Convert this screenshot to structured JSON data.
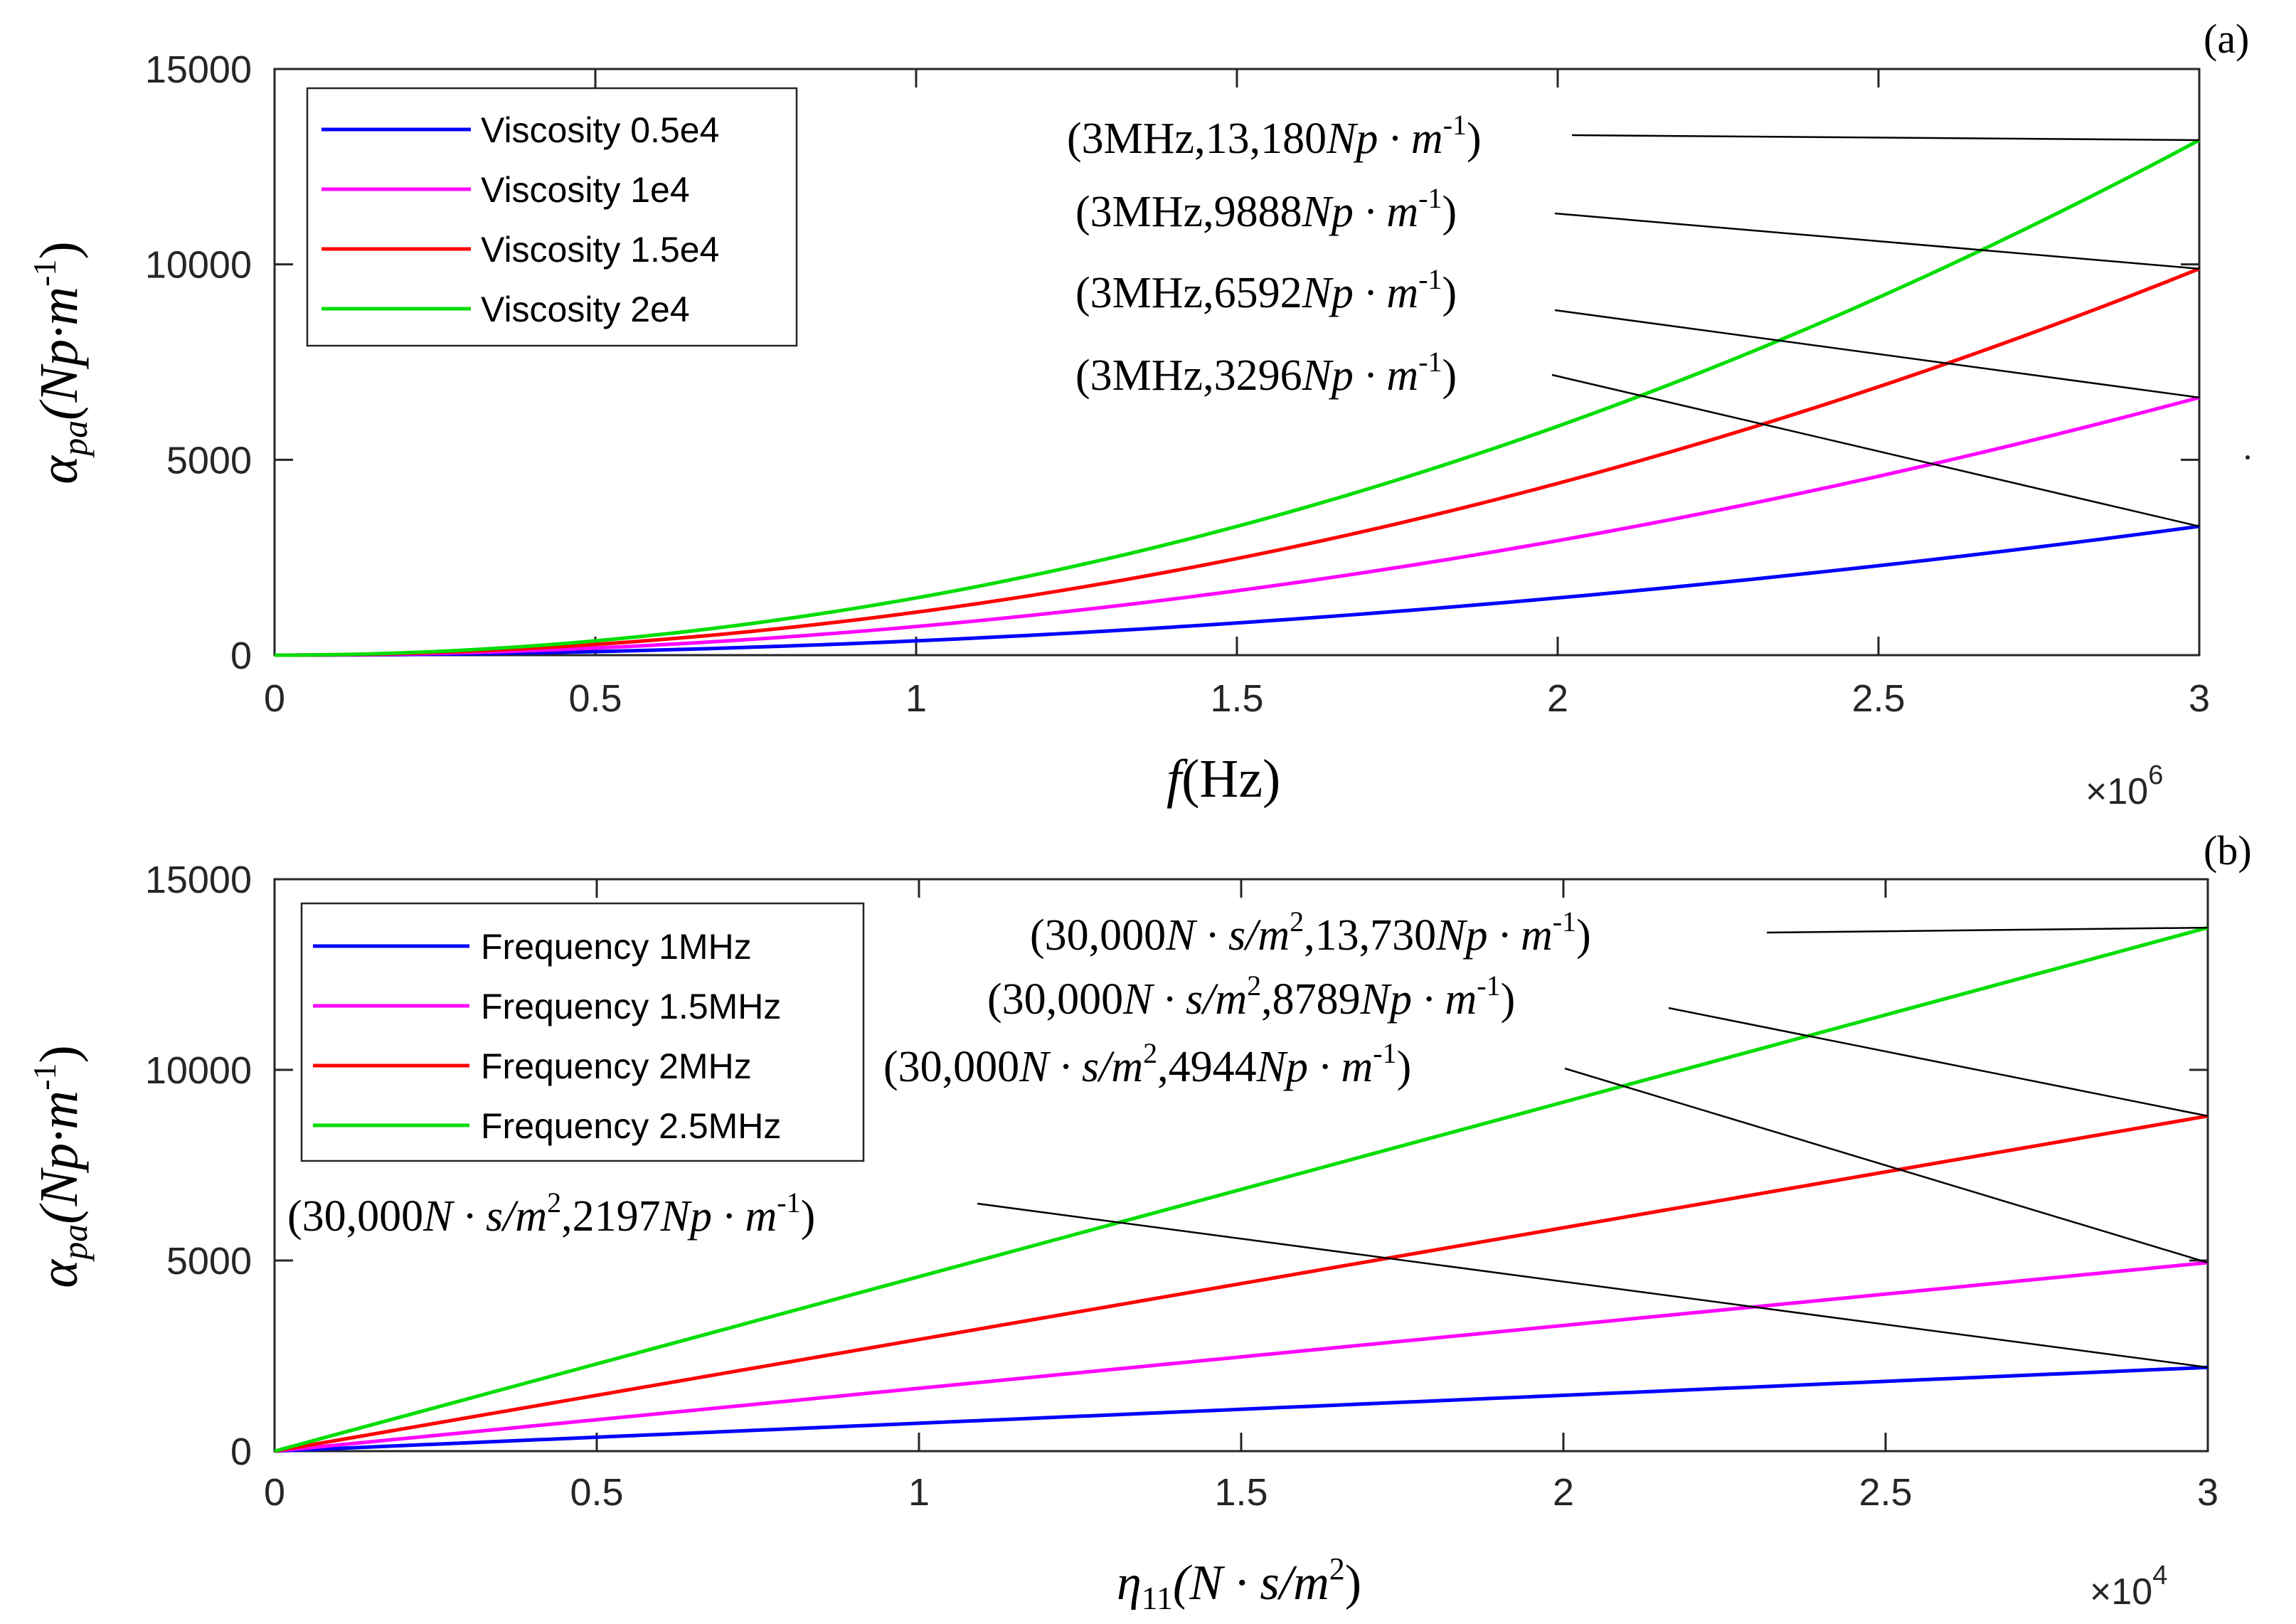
{
  "chart_data": [
    {
      "type": "line",
      "panel_label": "(a)",
      "xlabel": {
        "italic": "f",
        "rest": "(Hz)"
      },
      "ylabel": {
        "symbol": "α",
        "sub": "pa",
        "units": "(Np·m",
        "sup": "-1",
        "close": ")"
      },
      "xlim": [
        0,
        3000000
      ],
      "ylim": [
        0,
        15000
      ],
      "x_ticks": [
        0,
        500000,
        1000000,
        1500000,
        2000000,
        2500000,
        3000000
      ],
      "x_tick_labels": [
        "0",
        "0.5",
        "1",
        "1.5",
        "2",
        "2.5",
        "3"
      ],
      "y_ticks": [
        0,
        5000,
        10000,
        15000
      ],
      "y_tick_labels": [
        "0",
        "5000",
        "10000",
        "15000"
      ],
      "x_multiplier": {
        "base": "×10",
        "exp": "6"
      },
      "legend_position": "top-left",
      "curve": "quadratic",
      "series": [
        {
          "name": "Viscosity 0.5e4",
          "color": "#0000ff",
          "x": [
            0,
            3000000
          ],
          "end_value": 3296
        },
        {
          "name": "Viscosity 1e4",
          "color": "#ff00ff",
          "x": [
            0,
            3000000
          ],
          "end_value": 6592
        },
        {
          "name": "Viscosity 1.5e4",
          "color": "#ff0000",
          "x": [
            0,
            3000000
          ],
          "end_value": 9888
        },
        {
          "name": "Viscosity 2e4",
          "color": "#00dd00",
          "x": [
            0,
            3000000
          ],
          "end_value": 13180
        }
      ],
      "annotations": [
        {
          "text_main": "(3MHz,13,180",
          "text_unit": "Np · m",
          "text_sup": "-1",
          "text_close": ")",
          "x": 3000000,
          "y": 13180
        },
        {
          "text_main": "(3MHz,9888",
          "text_unit": "Np · m",
          "text_sup": "-1",
          "text_close": ")",
          "x": 3000000,
          "y": 9888
        },
        {
          "text_main": "(3MHz,6592",
          "text_unit": "Np · m",
          "text_sup": "-1",
          "text_close": ")",
          "x": 3000000,
          "y": 6592
        },
        {
          "text_main": "(3MHz,3296",
          "text_unit": "Np · m",
          "text_sup": "-1",
          "text_close": ")",
          "x": 3000000,
          "y": 3296
        }
      ]
    },
    {
      "type": "line",
      "panel_label": "(b)",
      "xlabel": {
        "symbol": "η",
        "sub": "11",
        "units": "(N · s/m",
        "sup": "2",
        "close": ")"
      },
      "ylabel": {
        "symbol": "α",
        "sub": "pa",
        "units": "(Np·m",
        "sup": "-1",
        "close": ")"
      },
      "xlim": [
        0,
        30000
      ],
      "ylim": [
        0,
        15000
      ],
      "x_ticks": [
        0,
        5000,
        10000,
        15000,
        20000,
        25000,
        30000
      ],
      "x_tick_labels": [
        "0",
        "0.5",
        "1",
        "1.5",
        "2",
        "2.5",
        "3"
      ],
      "y_ticks": [
        0,
        5000,
        10000,
        15000
      ],
      "y_tick_labels": [
        "0",
        "5000",
        "10000",
        "15000"
      ],
      "x_multiplier": {
        "base": "×10",
        "exp": "4"
      },
      "legend_position": "top-left",
      "curve": "linear",
      "series": [
        {
          "name": "Frequency 1MHz",
          "color": "#0000ff",
          "x": [
            0,
            30000
          ],
          "end_value": 2197
        },
        {
          "name": "Frequency 1.5MHz",
          "color": "#ff00ff",
          "x": [
            0,
            30000
          ],
          "end_value": 4944
        },
        {
          "name": "Frequency 2MHz",
          "color": "#ff0000",
          "x": [
            0,
            30000
          ],
          "end_value": 8789
        },
        {
          "name": "Frequency 2.5MHz",
          "color": "#00dd00",
          "x": [
            0,
            30000
          ],
          "end_value": 13730
        }
      ],
      "annotations": [
        {
          "text_main": "(30,000",
          "text_unit": "N · s/m",
          "text_sup": "2",
          "text_mid": ",13,730",
          "text_unit2": "Np · m",
          "text_sup2": "-1",
          "text_close": ")",
          "x": 30000,
          "y": 13730
        },
        {
          "text_main": "(30,000",
          "text_unit": "N · s/m",
          "text_sup": "2",
          "text_mid": ",8789",
          "text_unit2": "Np · m",
          "text_sup2": "-1",
          "text_close": ")",
          "x": 30000,
          "y": 8789
        },
        {
          "text_main": "(30,000",
          "text_unit": "N · s/m",
          "text_sup": "2",
          "text_mid": ",4944",
          "text_unit2": "Np · m",
          "text_sup2": "-1",
          "text_close": ")",
          "x": 30000,
          "y": 4944
        },
        {
          "text_main": "(30,000",
          "text_unit": "N · s/m",
          "text_sup": "2",
          "text_mid": ",2197",
          "text_unit2": "Np · m",
          "text_sup2": "-1",
          "text_close": ")",
          "x": 30000,
          "y": 2197
        }
      ]
    }
  ]
}
